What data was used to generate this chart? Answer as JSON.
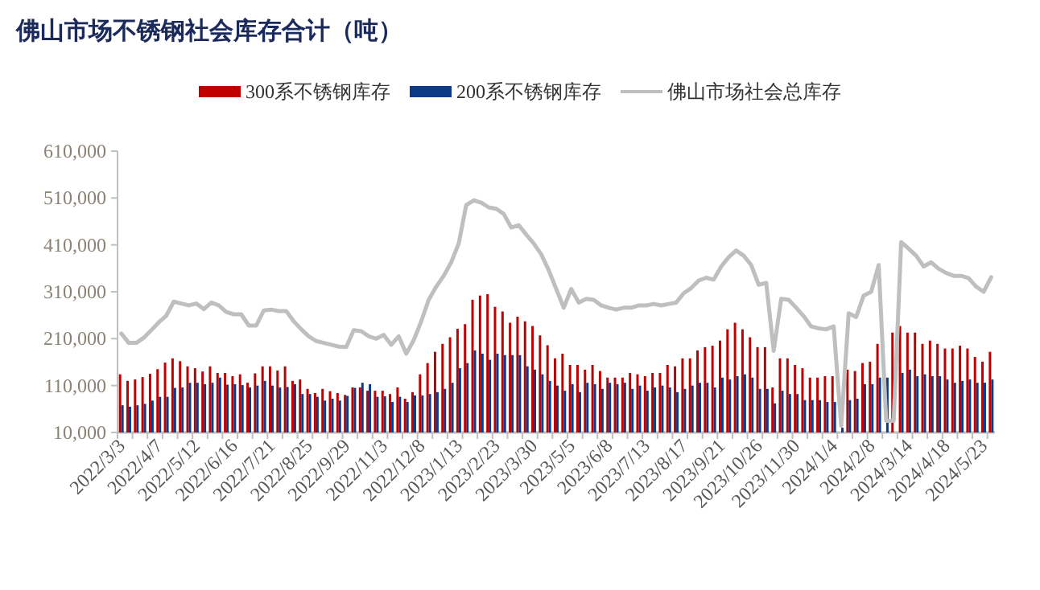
{
  "chart_data": {
    "type": "bar",
    "title": "佛山市场不锈钢社会库存合计（吨）",
    "categories": [
      "2022/3/3",
      null,
      null,
      null,
      null,
      "2022/4/7",
      null,
      null,
      null,
      null,
      "2022/5/12",
      null,
      null,
      null,
      null,
      "2022/6/16",
      null,
      null,
      null,
      null,
      "2022/7/21",
      null,
      null,
      null,
      null,
      "2022/8/25",
      null,
      null,
      null,
      null,
      "2022/9/29",
      null,
      null,
      null,
      null,
      "2022/11/3",
      null,
      null,
      null,
      null,
      "2022/12/8",
      null,
      null,
      null,
      null,
      "2023/1/13",
      null,
      null,
      null,
      null,
      "2023/2/23",
      null,
      null,
      null,
      null,
      "2023/3/30",
      null,
      null,
      null,
      null,
      "2023/5/5",
      null,
      null,
      null,
      null,
      "2023/6/8",
      null,
      null,
      null,
      null,
      "2023/7/13",
      null,
      null,
      null,
      null,
      "2023/8/17",
      null,
      null,
      null,
      null,
      "2023/9/21",
      null,
      null,
      null,
      null,
      "2023/10/26",
      null,
      null,
      null,
      null,
      "2023/11/30",
      null,
      null,
      null,
      null,
      "2024/1/4",
      null,
      null,
      null,
      null,
      "2024/2/8",
      null,
      null,
      null,
      null,
      "2024/3/14",
      null,
      null,
      null,
      null,
      "2024/4/18",
      null,
      null,
      null,
      null,
      "2024/5/23",
      null
    ],
    "series": [
      {
        "name": "300系不锈钢库存",
        "color": "#c00000",
        "values": [
          134000,
          120000,
          123000,
          128000,
          135000,
          145000,
          159000,
          168000,
          162000,
          151000,
          147000,
          140000,
          151000,
          137000,
          137000,
          130000,
          134000,
          116000,
          136000,
          151000,
          151000,
          142000,
          151000,
          120000,
          123000,
          103000,
          94000,
          103000,
          98000,
          94000,
          90000,
          106000,
          106000,
          99000,
          99000,
          99000,
          92000,
          106000,
          82000,
          96000,
          134000,
          158000,
          182000,
          199000,
          213000,
          231000,
          241000,
          293000,
          302000,
          305000,
          278000,
          268000,
          244000,
          257000,
          247000,
          237000,
          217000,
          196000,
          168000,
          178000,
          154000,
          154000,
          144000,
          154000,
          141000,
          127000,
          127000,
          127000,
          137000,
          134000,
          130000,
          137000,
          137000,
          154000,
          151000,
          168000,
          168000,
          185000,
          192000,
          195000,
          206000,
          230000,
          244000,
          230000,
          213000,
          192000,
          192000,
          106000,
          168000,
          168000,
          154000,
          147000,
          127000,
          127000,
          130000,
          130000,
          null,
          144000,
          141000,
          158000,
          161000,
          199000,
          null,
          223000,
          237000,
          223000,
          223000,
          199000,
          206000,
          199000,
          189000,
          189000,
          195000,
          189000,
          171000,
          161000,
          182000
        ]
      },
      {
        "name": "200系不锈钢库存",
        "color": "#0d3a87",
        "values": [
          68000,
          65000,
          68000,
          71000,
          78000,
          86000,
          86000,
          105000,
          106000,
          116000,
          116000,
          113000,
          116000,
          127000,
          112000,
          113000,
          111000,
          106000,
          110000,
          120000,
          110000,
          106000,
          107000,
          113000,
          92000,
          92000,
          86000,
          78000,
          82000,
          78000,
          88000,
          105000,
          116000,
          113000,
          86000,
          87000,
          75000,
          86000,
          75000,
          89000,
          89000,
          92000,
          96000,
          103000,
          116000,
          147000,
          158000,
          185000,
          178000,
          165000,
          178000,
          175000,
          175000,
          175000,
          151000,
          144000,
          134000,
          120000,
          110000,
          99000,
          113000,
          96000,
          116000,
          113000,
          103000,
          116000,
          113000,
          116000,
          103000,
          110000,
          99000,
          106000,
          110000,
          106000,
          96000,
          103000,
          110000,
          116000,
          116000,
          106000,
          127000,
          123000,
          130000,
          134000,
          127000,
          103000,
          103000,
          72000,
          99000,
          92000,
          92000,
          79000,
          79000,
          79000,
          75000,
          75000,
          20000,
          79000,
          82000,
          113000,
          113000,
          127000,
          127000,
          null,
          137000,
          144000,
          130000,
          134000,
          130000,
          130000,
          123000,
          116000,
          120000,
          123000,
          116000,
          116000,
          123000
        ]
      },
      {
        "name": "佛山市场社会总库存",
        "color": "#bfbfbf",
        "type": "line",
        "values": [
          221000,
          201000,
          201000,
          212000,
          228000,
          245000,
          259000,
          289000,
          285000,
          281000,
          285000,
          273000,
          287000,
          281000,
          267000,
          262000,
          262000,
          238000,
          238000,
          270000,
          272000,
          269000,
          269000,
          247000,
          230000,
          215000,
          205000,
          201000,
          197000,
          193000,
          192000,
          228000,
          226000,
          215000,
          210000,
          218000,
          197000,
          215000,
          178000,
          207000,
          247000,
          293000,
          321000,
          344000,
          373000,
          413000,
          495000,
          505000,
          500000,
          490000,
          487000,
          476000,
          447000,
          452000,
          432000,
          413000,
          390000,
          356000,
          316000,
          276000,
          316000,
          287000,
          295000,
          293000,
          281000,
          276000,
          272000,
          276000,
          276000,
          281000,
          281000,
          284000,
          281000,
          284000,
          287000,
          307000,
          318000,
          334000,
          340000,
          336000,
          364000,
          384000,
          398000,
          387000,
          367000,
          325000,
          329000,
          184000,
          295000,
          293000,
          276000,
          258000,
          236000,
          232000,
          230000,
          236000,
          24000,
          264000,
          256000,
          302000,
          310000,
          367000,
          35000,
          35000,
          416000,
          402000,
          387000,
          364000,
          373000,
          359000,
          350000,
          344000,
          344000,
          339000,
          321000,
          310000,
          341000
        ]
      }
    ],
    "ylim": [
      10000,
      610000
    ],
    "yticks": [
      {
        "value": 10000,
        "label": "10,000"
      },
      {
        "value": 110000,
        "label": "110,000"
      },
      {
        "value": 210000,
        "label": "210,000"
      },
      {
        "value": 310000,
        "label": "310,000"
      },
      {
        "value": 410000,
        "label": "410,000"
      },
      {
        "value": 510000,
        "label": "510,000"
      },
      {
        "value": 610000,
        "label": "610,000"
      }
    ],
    "legend": "top"
  }
}
